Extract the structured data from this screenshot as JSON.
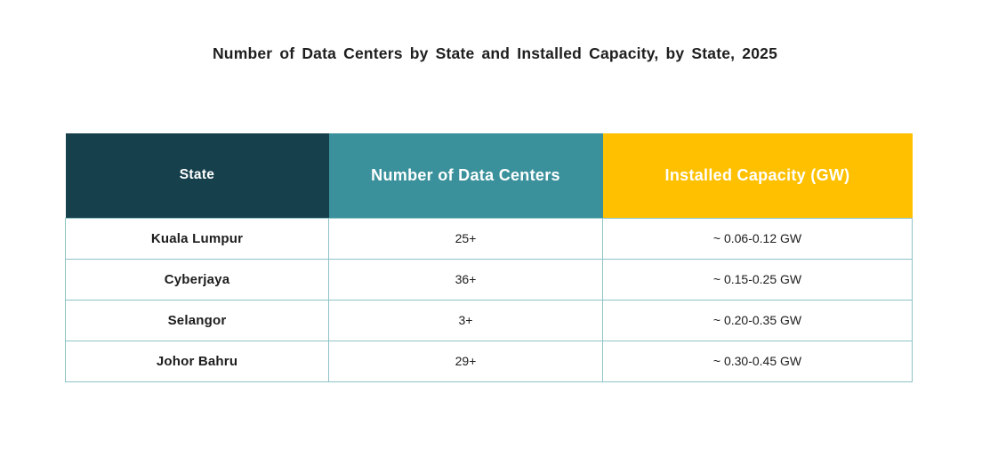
{
  "title": "Number of Data Centers by State and Installed Capacity, by State, 2025",
  "colors": {
    "header_state_bg": "#17404D",
    "header_count_bg": "#3A919B",
    "header_capacity_bg": "#FFC000",
    "header_text": "#FFFFFF",
    "grid_border": "#8FC3C6",
    "body_text": "#1C1C1C",
    "page_bg": "#FFFFFF"
  },
  "table": {
    "columns": [
      {
        "label": "State"
      },
      {
        "label": "Number of Data Centers"
      },
      {
        "label": "Installed Capacity (GW)"
      }
    ],
    "rows": [
      {
        "state": "Kuala Lumpur",
        "count": "25+",
        "capacity": "~ 0.06-0.12 GW"
      },
      {
        "state": "Cyberjaya",
        "count": "36+",
        "capacity": "~ 0.15-0.25 GW"
      },
      {
        "state": "Selangor",
        "count": "3+",
        "capacity": "~ 0.20-0.35 GW"
      },
      {
        "state": "Johor Bahru",
        "count": "29+",
        "capacity": "~ 0.30-0.45 GW"
      }
    ]
  },
  "chart_data": {
    "type": "table",
    "title": "Number of Data Centers by State and Installed Capacity, by State, 2025",
    "columns": [
      "State",
      "Number of Data Centers",
      "Installed Capacity (GW)"
    ],
    "rows": [
      [
        "Kuala Lumpur",
        "25+",
        "~ 0.06-0.12 GW"
      ],
      [
        "Cyberjaya",
        "36+",
        "~ 0.15-0.25 GW"
      ],
      [
        "Selangor",
        "3+",
        "~ 0.20-0.35 GW"
      ],
      [
        "Johor Bahru",
        "29+",
        "~ 0.30-0.45 GW"
      ]
    ]
  }
}
